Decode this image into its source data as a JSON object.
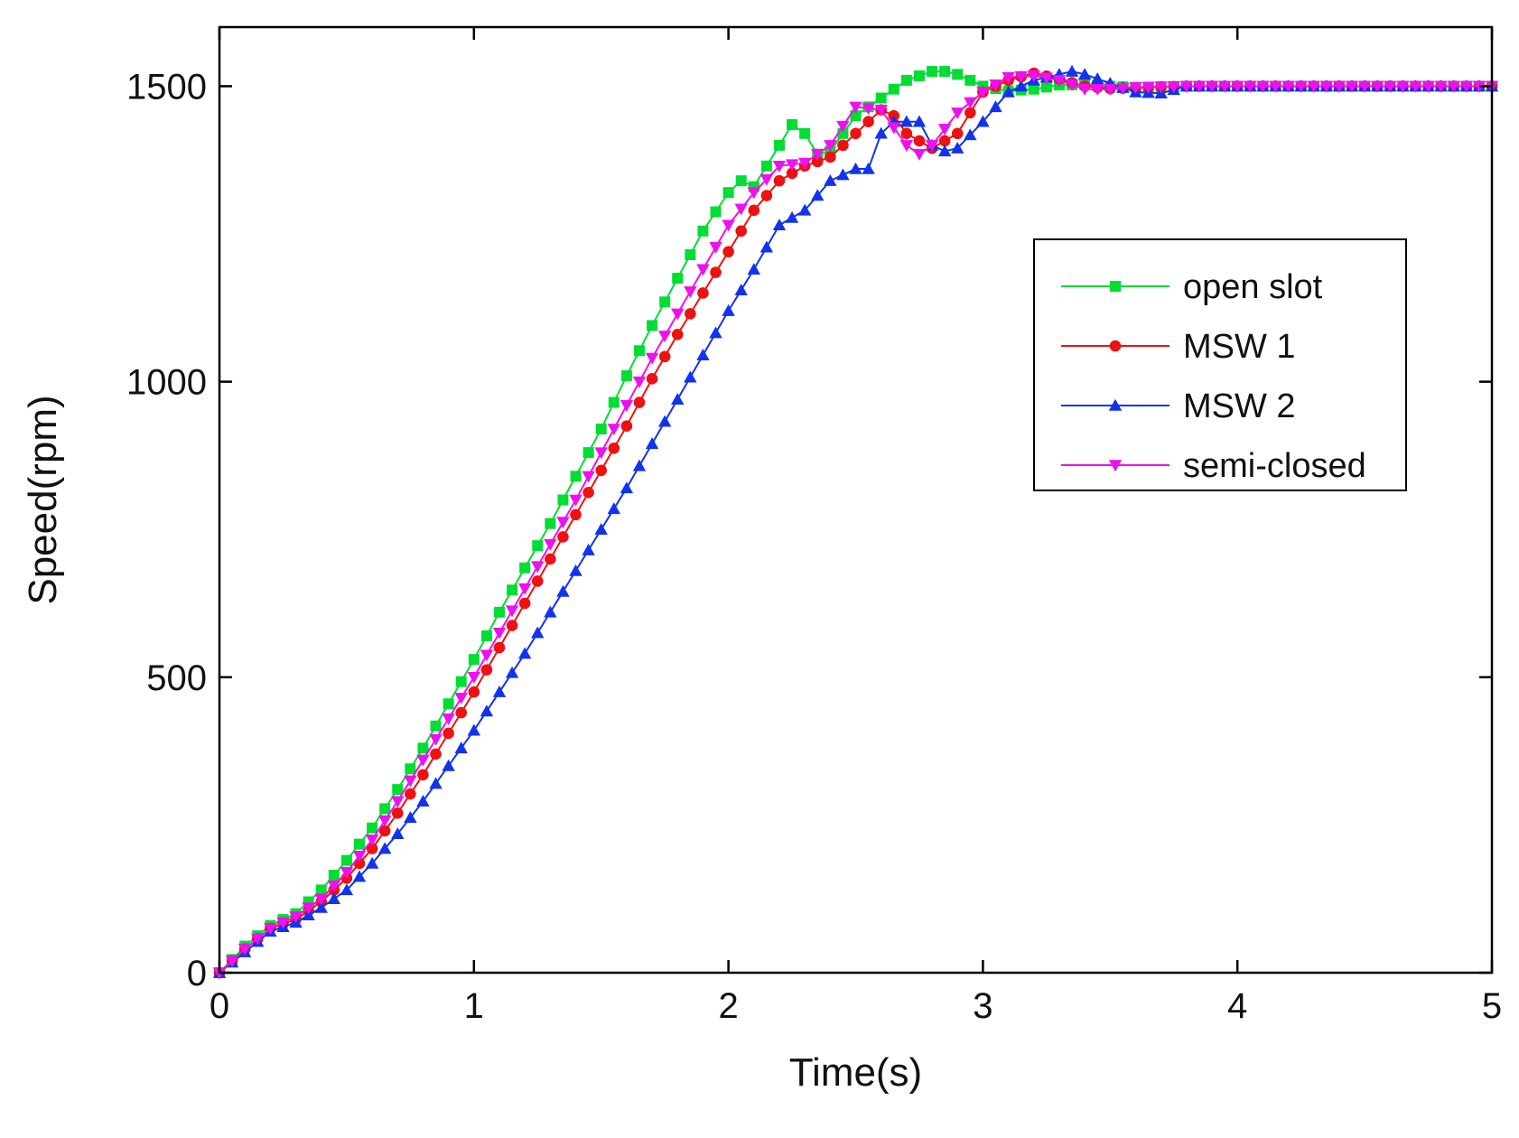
{
  "chart_data": {
    "type": "line",
    "title": "",
    "xlabel": "Time(s)",
    "ylabel": "Speed(rpm)",
    "xlim": [
      0,
      5
    ],
    "ylim": [
      0,
      1600
    ],
    "xticks": [
      0,
      1,
      2,
      3,
      4,
      5
    ],
    "yticks": [
      0,
      500,
      1000,
      1500
    ],
    "xtick_labels": [
      "0",
      "1",
      "2",
      "3",
      "4",
      "5"
    ],
    "ytick_labels": [
      "0",
      "500",
      "1000",
      "1500"
    ],
    "grid": false,
    "legend_position": "upper-right",
    "sample_step": 0.05,
    "series": [
      {
        "name": "open slot",
        "color": "#00dd33",
        "marker": "square",
        "points": [
          [
            0,
            0
          ],
          [
            0.1,
            45
          ],
          [
            0.2,
            80
          ],
          [
            0.3,
            100
          ],
          [
            0.4,
            140
          ],
          [
            0.5,
            190
          ],
          [
            0.6,
            245
          ],
          [
            0.7,
            310
          ],
          [
            0.8,
            380
          ],
          [
            0.9,
            455
          ],
          [
            1.0,
            530
          ],
          [
            1.1,
            610
          ],
          [
            1.2,
            685
          ],
          [
            1.3,
            760
          ],
          [
            1.4,
            840
          ],
          [
            1.5,
            920
          ],
          [
            1.6,
            1010
          ],
          [
            1.7,
            1095
          ],
          [
            1.8,
            1175
          ],
          [
            1.9,
            1255
          ],
          [
            2.0,
            1320
          ],
          [
            2.05,
            1340
          ],
          [
            2.1,
            1330
          ],
          [
            2.2,
            1400
          ],
          [
            2.25,
            1435
          ],
          [
            2.3,
            1420
          ],
          [
            2.35,
            1385
          ],
          [
            2.4,
            1390
          ],
          [
            2.5,
            1450
          ],
          [
            2.6,
            1480
          ],
          [
            2.7,
            1510
          ],
          [
            2.8,
            1525
          ],
          [
            2.85,
            1525
          ],
          [
            2.9,
            1520
          ],
          [
            3.0,
            1500
          ],
          [
            3.1,
            1492
          ],
          [
            3.2,
            1495
          ],
          [
            3.3,
            1502
          ],
          [
            3.4,
            1503
          ],
          [
            3.5,
            1500
          ],
          [
            3.6,
            1498
          ],
          [
            3.7,
            1499
          ],
          [
            3.8,
            1500
          ],
          [
            5.0,
            1500
          ]
        ]
      },
      {
        "name": "MSW 1",
        "color": "#ee1111",
        "marker": "circle",
        "points": [
          [
            0,
            0
          ],
          [
            0.1,
            40
          ],
          [
            0.2,
            75
          ],
          [
            0.3,
            90
          ],
          [
            0.4,
            120
          ],
          [
            0.5,
            160
          ],
          [
            0.6,
            210
          ],
          [
            0.7,
            270
          ],
          [
            0.8,
            335
          ],
          [
            0.9,
            405
          ],
          [
            1.0,
            475
          ],
          [
            1.1,
            550
          ],
          [
            1.2,
            625
          ],
          [
            1.3,
            700
          ],
          [
            1.4,
            775
          ],
          [
            1.5,
            850
          ],
          [
            1.6,
            925
          ],
          [
            1.7,
            1005
          ],
          [
            1.8,
            1080
          ],
          [
            1.9,
            1150
          ],
          [
            2.0,
            1220
          ],
          [
            2.1,
            1290
          ],
          [
            2.2,
            1340
          ],
          [
            2.3,
            1365
          ],
          [
            2.4,
            1380
          ],
          [
            2.5,
            1420
          ],
          [
            2.6,
            1460
          ],
          [
            2.65,
            1450
          ],
          [
            2.7,
            1420
          ],
          [
            2.8,
            1395
          ],
          [
            2.9,
            1420
          ],
          [
            3.0,
            1490
          ],
          [
            3.1,
            1510
          ],
          [
            3.2,
            1522
          ],
          [
            3.3,
            1512
          ],
          [
            3.4,
            1500
          ],
          [
            3.5,
            1496
          ],
          [
            3.6,
            1497
          ],
          [
            3.7,
            1499
          ],
          [
            3.8,
            1500
          ],
          [
            5.0,
            1500
          ]
        ]
      },
      {
        "name": "MSW 2",
        "color": "#1133ee",
        "marker": "triangle-up",
        "points": [
          [
            0,
            0
          ],
          [
            0.1,
            35
          ],
          [
            0.2,
            70
          ],
          [
            0.3,
            85
          ],
          [
            0.4,
            110
          ],
          [
            0.5,
            140
          ],
          [
            0.6,
            185
          ],
          [
            0.7,
            235
          ],
          [
            0.8,
            290
          ],
          [
            0.9,
            350
          ],
          [
            1.0,
            410
          ],
          [
            1.1,
            475
          ],
          [
            1.2,
            540
          ],
          [
            1.3,
            610
          ],
          [
            1.4,
            680
          ],
          [
            1.5,
            750
          ],
          [
            1.6,
            820
          ],
          [
            1.7,
            895
          ],
          [
            1.8,
            970
          ],
          [
            1.9,
            1045
          ],
          [
            2.0,
            1120
          ],
          [
            2.1,
            1190
          ],
          [
            2.2,
            1265
          ],
          [
            2.3,
            1290
          ],
          [
            2.4,
            1340
          ],
          [
            2.5,
            1360
          ],
          [
            2.55,
            1360
          ],
          [
            2.6,
            1420
          ],
          [
            2.65,
            1440
          ],
          [
            2.7,
            1440
          ],
          [
            2.75,
            1440
          ],
          [
            2.8,
            1400
          ],
          [
            2.85,
            1390
          ],
          [
            2.9,
            1395
          ],
          [
            3.0,
            1440
          ],
          [
            3.1,
            1490
          ],
          [
            3.2,
            1510
          ],
          [
            3.3,
            1520
          ],
          [
            3.35,
            1525
          ],
          [
            3.4,
            1520
          ],
          [
            3.5,
            1505
          ],
          [
            3.6,
            1490
          ],
          [
            3.7,
            1488
          ],
          [
            3.8,
            1500
          ],
          [
            5.0,
            1500
          ]
        ]
      },
      {
        "name": "semi-closed",
        "color": "#ee11ee",
        "marker": "triangle-down",
        "points": [
          [
            0,
            0
          ],
          [
            0.1,
            40
          ],
          [
            0.2,
            75
          ],
          [
            0.3,
            95
          ],
          [
            0.4,
            125
          ],
          [
            0.5,
            170
          ],
          [
            0.6,
            225
          ],
          [
            0.7,
            290
          ],
          [
            0.8,
            360
          ],
          [
            0.9,
            430
          ],
          [
            1.0,
            500
          ],
          [
            1.1,
            575
          ],
          [
            1.2,
            650
          ],
          [
            1.3,
            725
          ],
          [
            1.4,
            800
          ],
          [
            1.5,
            880
          ],
          [
            1.6,
            960
          ],
          [
            1.7,
            1040
          ],
          [
            1.8,
            1115
          ],
          [
            1.9,
            1190
          ],
          [
            2.0,
            1265
          ],
          [
            2.1,
            1320
          ],
          [
            2.2,
            1365
          ],
          [
            2.3,
            1370
          ],
          [
            2.4,
            1400
          ],
          [
            2.5,
            1465
          ],
          [
            2.6,
            1460
          ],
          [
            2.7,
            1400
          ],
          [
            2.75,
            1385
          ],
          [
            2.8,
            1400
          ],
          [
            2.9,
            1455
          ],
          [
            3.0,
            1490
          ],
          [
            3.1,
            1515
          ],
          [
            3.2,
            1518
          ],
          [
            3.3,
            1510
          ],
          [
            3.4,
            1495
          ],
          [
            3.5,
            1495
          ],
          [
            3.6,
            1498
          ],
          [
            3.7,
            1499
          ],
          [
            3.8,
            1500
          ],
          [
            5.0,
            1500
          ]
        ]
      }
    ]
  }
}
